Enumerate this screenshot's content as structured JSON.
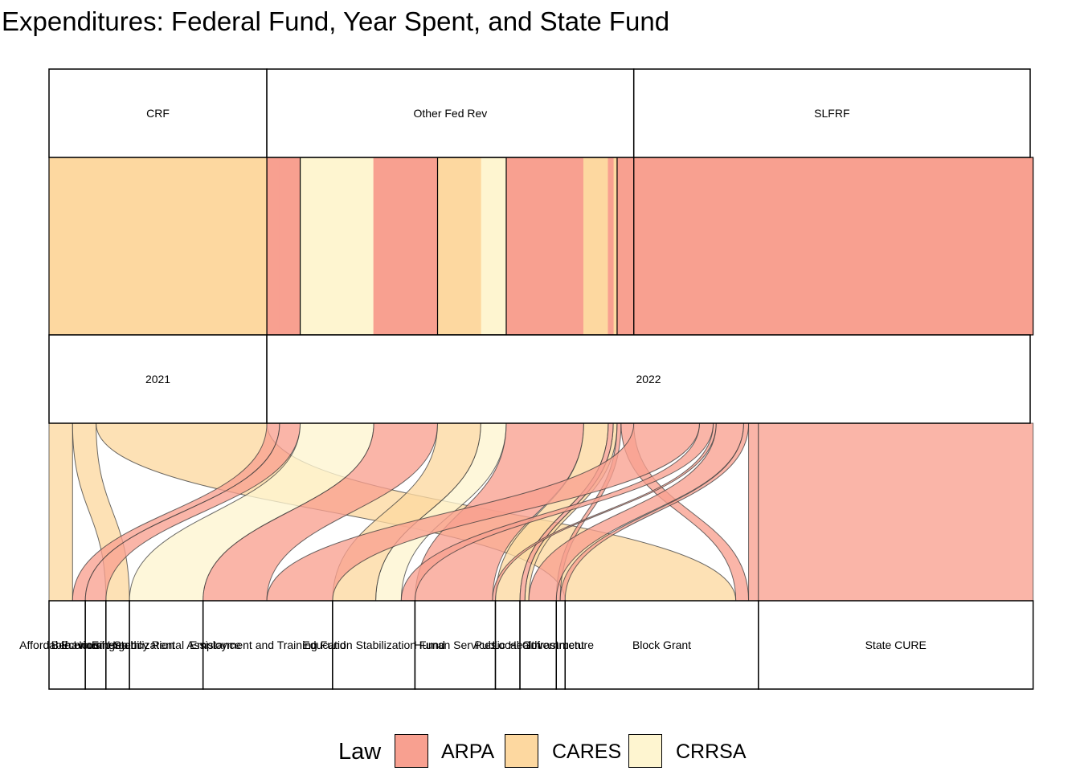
{
  "chart_data": {
    "type": "alluvial",
    "title": "Expenditures: Federal Fund, Year Spent, and State Fund",
    "axes": [
      {
        "name": "Federal Fund",
        "strata": [
          {
            "label": "CRF",
            "value": 22.2
          },
          {
            "label": "Other Fed Rev",
            "value": 37.4
          },
          {
            "label": "SLFRF",
            "value": 40.4
          }
        ]
      },
      {
        "name": "Year Spent",
        "strata": [
          {
            "label": "2021",
            "value": 22.2
          },
          {
            "label": "2022",
            "value": 77.8
          }
        ]
      },
      {
        "name": "State Fund",
        "strata": [
          {
            "label": "Affordable Housing",
            "value": 3.7
          },
          {
            "label": "Behavioral Health",
            "value": 2.1
          },
          {
            "label": "Economic Stabilization",
            "value": 2.4
          },
          {
            "label": "Emergency Rental Assistance",
            "value": 7.5
          },
          {
            "label": "Employment and Training Fund",
            "value": 13.2
          },
          {
            "label": "Education Stabilization Fund",
            "value": 8.4
          },
          {
            "label": "Human Services",
            "value": 8.2
          },
          {
            "label": "Public Health",
            "value": 2.5
          },
          {
            "label": "Local Government",
            "value": 3.7
          },
          {
            "label": "Infrastructure",
            "value": 0.9
          },
          {
            "label": "Block Grant",
            "value": 19.7
          },
          {
            "label": "State CURE",
            "value": 28.0
          }
        ]
      }
    ],
    "flows": [
      {
        "federal": "CRF",
        "year": "2021",
        "state": "Affordable Housing",
        "law": "CARES",
        "value": 2.4
      },
      {
        "federal": "CRF",
        "year": "2021",
        "state": "Economic Stabilization",
        "law": "CARES",
        "value": 2.4
      },
      {
        "federal": "CRF",
        "year": "2021",
        "state": "Block Grant",
        "law": "CARES",
        "value": 17.4
      },
      {
        "federal": "Other Fed Rev",
        "year": "2022",
        "state": "Affordable Housing",
        "law": "ARPA",
        "value": 1.3
      },
      {
        "federal": "Other Fed Rev",
        "year": "2022",
        "state": "Behavioral Health",
        "law": "ARPA",
        "value": 2.1
      },
      {
        "federal": "Other Fed Rev",
        "year": "2022",
        "state": "Emergency Rental Assistance",
        "law": "CRRSA",
        "value": 7.5
      },
      {
        "federal": "Other Fed Rev",
        "year": "2022",
        "state": "Employment and Training Fund",
        "law": "ARPA",
        "value": 6.5
      },
      {
        "federal": "Other Fed Rev",
        "year": "2022",
        "state": "Education Stabilization Fund",
        "law": "CRRSA",
        "value": 2.6
      },
      {
        "federal": "Other Fed Rev",
        "year": "2022",
        "state": "Education Stabilization Fund",
        "law": "CARES",
        "value": 4.4
      },
      {
        "federal": "Other Fed Rev",
        "year": "2022",
        "state": "Human Services",
        "law": "ARPA",
        "value": 7.9
      },
      {
        "federal": "Other Fed Rev",
        "year": "2022",
        "state": "Public Health",
        "law": "CARES",
        "value": 2.5
      },
      {
        "federal": "Other Fed Rev",
        "year": "2022",
        "state": "Local Government",
        "law": "CARES",
        "value": 0.4
      },
      {
        "federal": "Other Fed Rev",
        "year": "2022",
        "state": "Local Government",
        "law": "ARPA",
        "value": 0.5
      },
      {
        "federal": "Other Fed Rev",
        "year": "2022",
        "state": "Infrastructure",
        "law": "ARPA",
        "value": 0.4
      },
      {
        "federal": "Other Fed Rev",
        "year": "2022",
        "state": "Block Grant",
        "law": "ARPA",
        "value": 1.3
      },
      {
        "federal": "SLFRF",
        "year": "2022",
        "state": "Employment and Training Fund",
        "law": "ARPA",
        "value": 6.7
      },
      {
        "federal": "SLFRF",
        "year": "2022",
        "state": "Education Stabilization Fund",
        "law": "ARPA",
        "value": 1.4
      },
      {
        "federal": "SLFRF",
        "year": "2022",
        "state": "Human Services",
        "law": "ARPA",
        "value": 0.3
      },
      {
        "federal": "SLFRF",
        "year": "2022",
        "state": "Local Government",
        "law": "ARPA",
        "value": 2.8
      },
      {
        "federal": "SLFRF",
        "year": "2022",
        "state": "Infrastructure",
        "law": "ARPA",
        "value": 0.5
      },
      {
        "federal": "SLFRF",
        "year": "2022",
        "state": "Block Grant",
        "law": "ARPA",
        "value": 1.0
      },
      {
        "federal": "SLFRF",
        "year": "2022",
        "state": "State CURE",
        "law": "ARPA",
        "value": 28.0
      }
    ],
    "legend": {
      "title": "Law",
      "position": "bottom",
      "entries": [
        {
          "label": "ARPA",
          "color": "#F8A090"
        },
        {
          "label": "CARES",
          "color": "#FDD8A0"
        },
        {
          "label": "CRRSA",
          "color": "#FEF5D0"
        }
      ]
    }
  }
}
